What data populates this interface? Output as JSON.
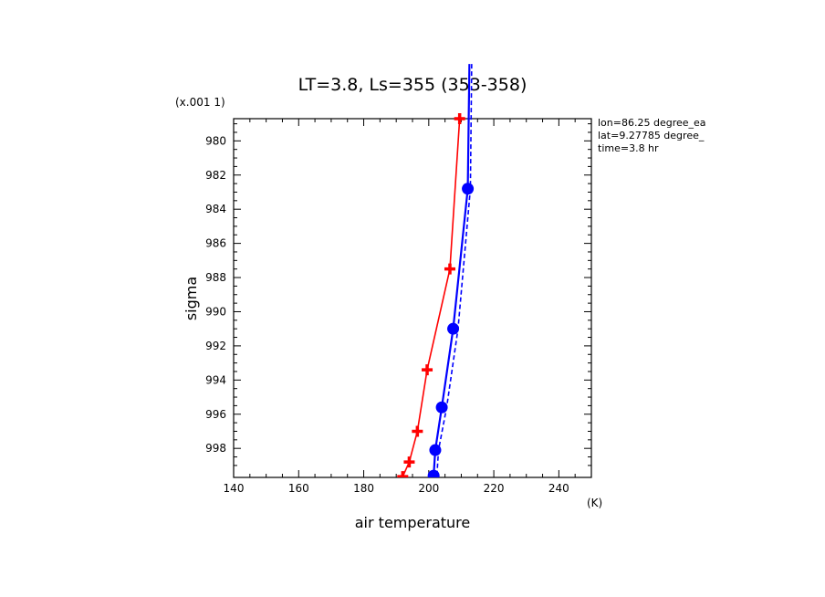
{
  "chart_data": {
    "type": "line",
    "title": "LT=3.8, Ls=355 (353-358)",
    "xlabel": "air temperature",
    "x_unit": "(K)",
    "ylabel": "sigma",
    "y_scale_note": "(x.001 1)",
    "xlim": [
      140,
      250
    ],
    "ylim": [
      999.7,
      978.7
    ],
    "x_ticks": [
      140,
      160,
      180,
      200,
      220,
      240
    ],
    "y_ticks": [
      980,
      982,
      984,
      986,
      988,
      990,
      992,
      994,
      996,
      998
    ],
    "info": [
      "lon=86.25 degree_ea",
      "lat=9.27785 degree_",
      "time=3.8 hr"
    ],
    "series": [
      {
        "color": "#ff0000",
        "marker": "plus",
        "dashed": false,
        "points": [
          [
            209.5,
            978.7
          ],
          [
            206.5,
            987.5
          ],
          [
            199.5,
            993.4
          ],
          [
            196.5,
            997.0
          ],
          [
            194.0,
            998.8
          ],
          [
            192.0,
            999.65
          ]
        ]
      },
      {
        "color": "#0000ff",
        "marker": "circle",
        "dashed": false,
        "extends_above": true,
        "points": [
          [
            212.5,
            975.5
          ],
          [
            212.0,
            982.8
          ],
          [
            207.5,
            991.0
          ],
          [
            204.0,
            995.6
          ],
          [
            202.0,
            998.1
          ],
          [
            201.5,
            999.6
          ]
        ]
      },
      {
        "color": "#0000ff",
        "marker": "none",
        "dashed": true,
        "extends_above": true,
        "points": [
          [
            213.2,
            975.5
          ],
          [
            212.8,
            982.8
          ],
          [
            209.0,
            991.0
          ],
          [
            205.5,
            995.6
          ],
          [
            203.0,
            998.1
          ],
          [
            202.5,
            999.6
          ]
        ]
      }
    ]
  }
}
